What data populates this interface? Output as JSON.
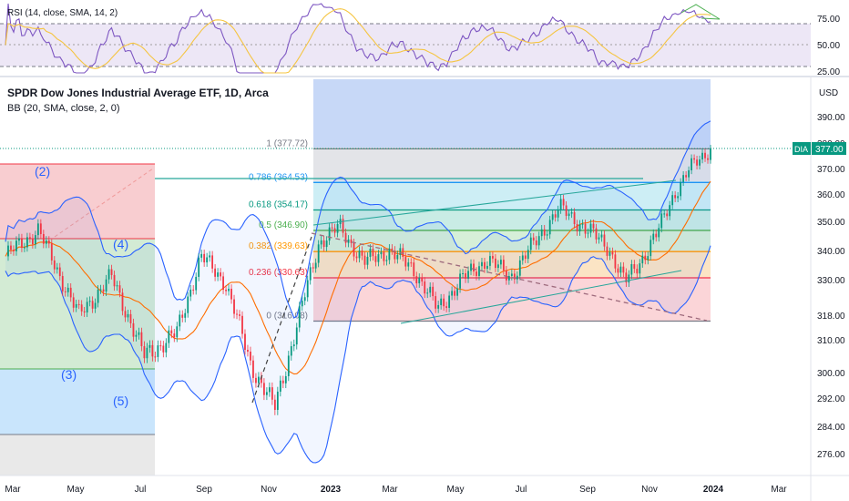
{
  "rsi_panel": {
    "indicator_label": "RSI (14, close, SMA, 14, 2)",
    "ticks": [
      "75.00",
      "50.00",
      "25.00"
    ]
  },
  "main_panel": {
    "title": "SPDR Dow Jones Industrial Average ETF, 1D, Arca",
    "bb_label": "BB (20, SMA, close, 2, 0)",
    "currency": "USD",
    "price_tag": "377.00",
    "symbol": "DIA"
  },
  "chart_data": {
    "type": "line",
    "x_ticks": [
      "Mar",
      "May",
      "Jul",
      "Sep",
      "Nov",
      "2023",
      "Mar",
      "May",
      "Jul",
      "Sep",
      "Nov",
      "2024",
      "Mar"
    ],
    "y_ticks": [
      "390.00",
      "380.00",
      "370.00",
      "360.00",
      "350.00",
      "340.00",
      "330.00",
      "318.00",
      "310.00",
      "300.00",
      "292.00",
      "284.00",
      "276.00"
    ],
    "ylim": [
      270,
      397
    ],
    "fib_levels": [
      {
        "label": "1 (377.72)",
        "value": 377.72,
        "color": "#787b86"
      },
      {
        "label": "0.786 (364.53)",
        "value": 364.53,
        "color": "#2196f3"
      },
      {
        "label": "0.618 (354.17)",
        "value": 354.17,
        "color": "#089981"
      },
      {
        "label": "0.5 (346.90)",
        "value": 346.9,
        "color": "#4caf50"
      },
      {
        "label": "0.382 (339.63)",
        "value": 339.63,
        "color": "#ff9800"
      },
      {
        "label": "0.236 (330.63)",
        "value": 330.63,
        "color": "#f23645"
      },
      {
        "label": "0 (316.08)",
        "value": 316.08,
        "color": "#787b86"
      }
    ],
    "wave_labels": [
      "(2)",
      "(3)",
      "(4)",
      "(5)"
    ],
    "series": [
      {
        "name": "DIA",
        "x": [
          0,
          0.04,
          0.09,
          0.13,
          0.17,
          0.21,
          0.24,
          0.27,
          0.3,
          0.33,
          0.355,
          0.385,
          0.41,
          0.44,
          0.47,
          0.5,
          0.53,
          0.56,
          0.59,
          0.62,
          0.65,
          0.68,
          0.71,
          0.74,
          0.76,
          0.78,
          0.8,
          0.82,
          0.84,
          0.865
        ],
        "values": [
          338,
          347,
          318,
          331,
          305,
          312,
          338,
          329,
          303,
          289,
          312,
          343,
          348,
          336,
          340,
          334,
          320,
          330,
          337,
          331,
          343,
          355,
          348,
          341,
          329,
          337,
          346,
          360,
          370,
          378
        ]
      }
    ]
  }
}
